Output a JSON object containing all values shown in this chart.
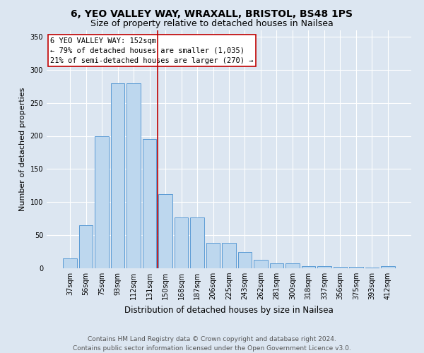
{
  "title": "6, YEO VALLEY WAY, WRAXALL, BRISTOL, BS48 1PS",
  "subtitle": "Size of property relative to detached houses in Nailsea",
  "xlabel": "Distribution of detached houses by size in Nailsea",
  "ylabel": "Number of detached properties",
  "categories": [
    "37sqm",
    "56sqm",
    "75sqm",
    "93sqm",
    "112sqm",
    "131sqm",
    "150sqm",
    "168sqm",
    "187sqm",
    "206sqm",
    "225sqm",
    "243sqm",
    "262sqm",
    "281sqm",
    "300sqm",
    "318sqm",
    "337sqm",
    "356sqm",
    "375sqm",
    "393sqm",
    "412sqm"
  ],
  "values": [
    15,
    65,
    200,
    280,
    280,
    195,
    112,
    77,
    77,
    38,
    38,
    25,
    13,
    8,
    8,
    3,
    3,
    2,
    2,
    1,
    3
  ],
  "bar_color": "#bdd7ee",
  "bar_edge_color": "#5b9bd5",
  "background_color": "#dce6f1",
  "plot_bg_color": "#dce6f1",
  "vline_x_index": 5.5,
  "vline_color": "#c00000",
  "annotation_text": "6 YEO VALLEY WAY: 152sqm\n← 79% of detached houses are smaller (1,035)\n21% of semi-detached houses are larger (270) →",
  "annotation_box_color": "#ffffff",
  "annotation_box_edge_color": "#c00000",
  "ylim": [
    0,
    360
  ],
  "yticks": [
    0,
    50,
    100,
    150,
    200,
    250,
    300,
    350
  ],
  "footer": "Contains HM Land Registry data © Crown copyright and database right 2024.\nContains public sector information licensed under the Open Government Licence v3.0.",
  "title_fontsize": 10,
  "subtitle_fontsize": 9,
  "xlabel_fontsize": 8.5,
  "ylabel_fontsize": 8,
  "tick_fontsize": 7,
  "annotation_fontsize": 7.5,
  "footer_fontsize": 6.5
}
